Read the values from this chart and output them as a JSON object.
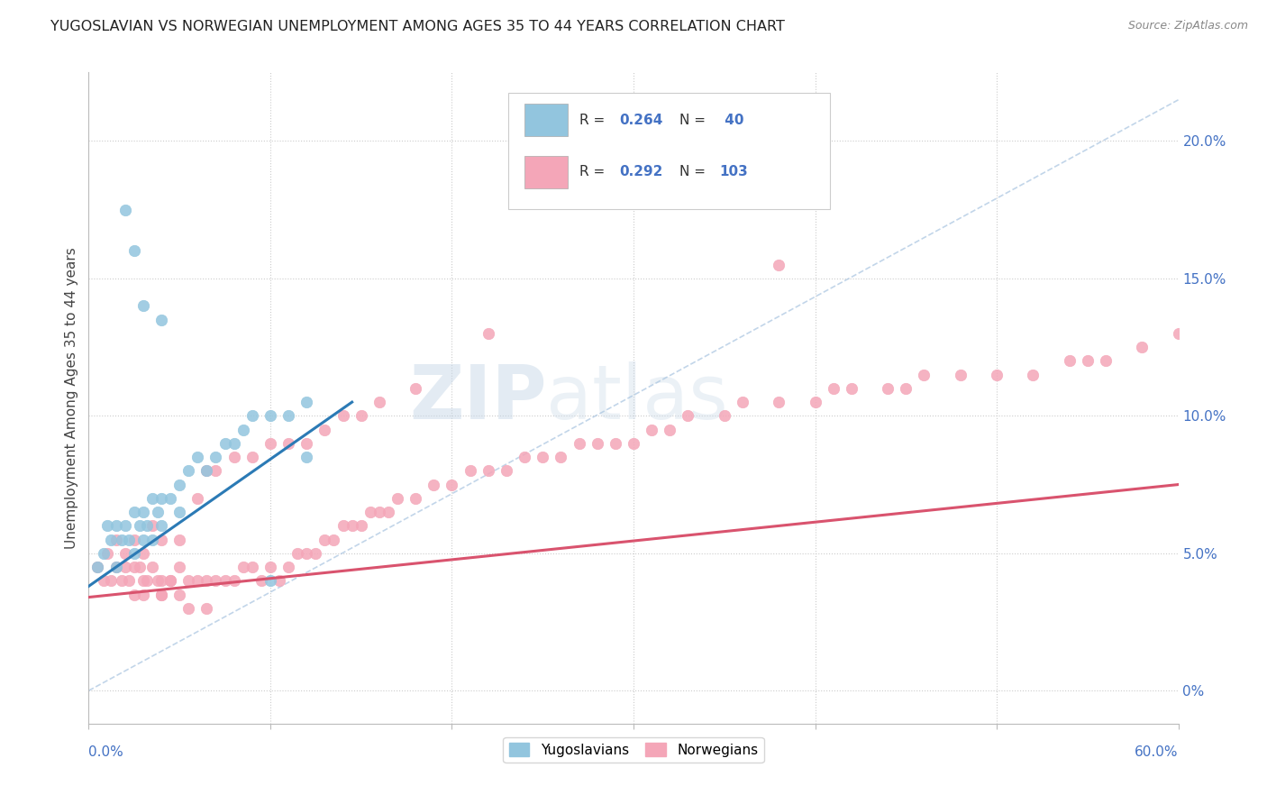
{
  "title": "YUGOSLAVIAN VS NORWEGIAN UNEMPLOYMENT AMONG AGES 35 TO 44 YEARS CORRELATION CHART",
  "source": "Source: ZipAtlas.com",
  "ylabel": "Unemployment Among Ages 35 to 44 years",
  "right_ytick_vals": [
    0.0,
    0.05,
    0.1,
    0.15,
    0.2
  ],
  "right_ytick_labels": [
    "0%",
    "5.0%",
    "10.0%",
    "15.0%",
    "20.0%"
  ],
  "xlim": [
    0.0,
    0.6
  ],
  "ylim": [
    -0.012,
    0.225
  ],
  "color_yug": "#92c5de",
  "color_nor": "#f4a6b8",
  "color_yug_line": "#2b7ab5",
  "color_nor_line": "#d9536e",
  "color_diag": "#a8c4e0",
  "watermark_zip": "ZIP",
  "watermark_atlas": "atlas",
  "yug_x": [
    0.005,
    0.008,
    0.01,
    0.012,
    0.015,
    0.015,
    0.018,
    0.02,
    0.022,
    0.025,
    0.025,
    0.028,
    0.03,
    0.03,
    0.032,
    0.035,
    0.035,
    0.038,
    0.04,
    0.04,
    0.045,
    0.05,
    0.05,
    0.055,
    0.06,
    0.065,
    0.07,
    0.075,
    0.08,
    0.085,
    0.09,
    0.1,
    0.11,
    0.12,
    0.02,
    0.025,
    0.03,
    0.04,
    0.12,
    0.1
  ],
  "yug_y": [
    0.045,
    0.05,
    0.06,
    0.055,
    0.06,
    0.045,
    0.055,
    0.06,
    0.055,
    0.065,
    0.05,
    0.06,
    0.065,
    0.055,
    0.06,
    0.07,
    0.055,
    0.065,
    0.07,
    0.06,
    0.07,
    0.075,
    0.065,
    0.08,
    0.085,
    0.08,
    0.085,
    0.09,
    0.09,
    0.095,
    0.1,
    0.1,
    0.1,
    0.105,
    0.175,
    0.16,
    0.14,
    0.135,
    0.085,
    0.04
  ],
  "nor_x": [
    0.005,
    0.008,
    0.01,
    0.012,
    0.015,
    0.018,
    0.02,
    0.022,
    0.025,
    0.025,
    0.028,
    0.03,
    0.03,
    0.032,
    0.035,
    0.038,
    0.04,
    0.04,
    0.045,
    0.05,
    0.05,
    0.055,
    0.055,
    0.06,
    0.065,
    0.065,
    0.07,
    0.075,
    0.08,
    0.085,
    0.09,
    0.095,
    0.1,
    0.105,
    0.11,
    0.115,
    0.12,
    0.125,
    0.13,
    0.135,
    0.14,
    0.145,
    0.15,
    0.155,
    0.16,
    0.165,
    0.17,
    0.18,
    0.19,
    0.2,
    0.21,
    0.22,
    0.23,
    0.24,
    0.25,
    0.26,
    0.27,
    0.28,
    0.29,
    0.3,
    0.31,
    0.32,
    0.33,
    0.35,
    0.36,
    0.38,
    0.4,
    0.41,
    0.42,
    0.44,
    0.45,
    0.46,
    0.48,
    0.5,
    0.52,
    0.54,
    0.55,
    0.56,
    0.58,
    0.6,
    0.015,
    0.02,
    0.025,
    0.03,
    0.035,
    0.04,
    0.04,
    0.045,
    0.05,
    0.06,
    0.065,
    0.07,
    0.08,
    0.09,
    0.1,
    0.11,
    0.12,
    0.13,
    0.14,
    0.15,
    0.16,
    0.18,
    0.22,
    0.38
  ],
  "nor_y": [
    0.045,
    0.04,
    0.05,
    0.04,
    0.045,
    0.04,
    0.045,
    0.04,
    0.045,
    0.035,
    0.045,
    0.04,
    0.035,
    0.04,
    0.045,
    0.04,
    0.04,
    0.035,
    0.04,
    0.045,
    0.035,
    0.04,
    0.03,
    0.04,
    0.04,
    0.03,
    0.04,
    0.04,
    0.04,
    0.045,
    0.045,
    0.04,
    0.045,
    0.04,
    0.045,
    0.05,
    0.05,
    0.05,
    0.055,
    0.055,
    0.06,
    0.06,
    0.06,
    0.065,
    0.065,
    0.065,
    0.07,
    0.07,
    0.075,
    0.075,
    0.08,
    0.08,
    0.08,
    0.085,
    0.085,
    0.085,
    0.09,
    0.09,
    0.09,
    0.09,
    0.095,
    0.095,
    0.1,
    0.1,
    0.105,
    0.105,
    0.105,
    0.11,
    0.11,
    0.11,
    0.11,
    0.115,
    0.115,
    0.115,
    0.115,
    0.12,
    0.12,
    0.12,
    0.125,
    0.13,
    0.055,
    0.05,
    0.055,
    0.05,
    0.06,
    0.055,
    0.035,
    0.04,
    0.055,
    0.07,
    0.08,
    0.08,
    0.085,
    0.085,
    0.09,
    0.09,
    0.09,
    0.095,
    0.1,
    0.1,
    0.105,
    0.11,
    0.13,
    0.155
  ],
  "yug_trend_x": [
    0.0,
    0.145
  ],
  "yug_trend_y": [
    0.038,
    0.105
  ],
  "nor_trend_x": [
    0.0,
    0.6
  ],
  "nor_trend_y": [
    0.034,
    0.075
  ]
}
